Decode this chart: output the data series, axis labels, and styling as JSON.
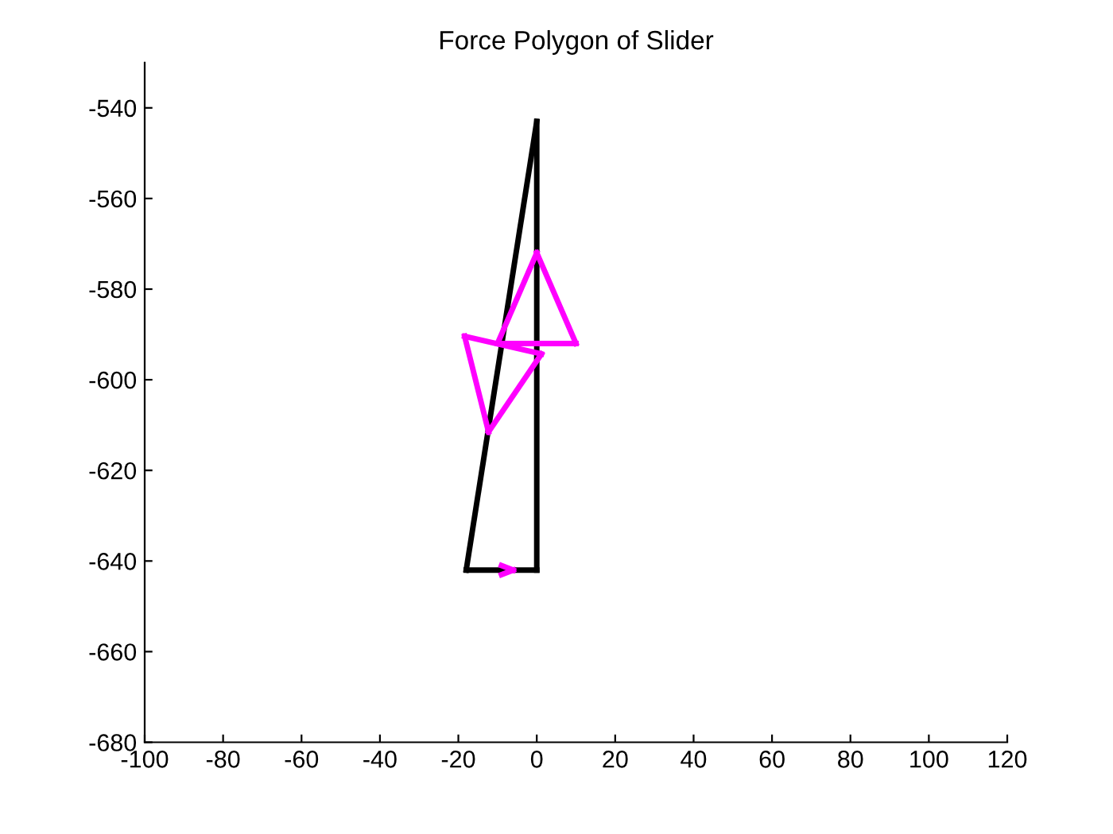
{
  "chart_data": {
    "type": "line",
    "title": "Force Polygon of Slider",
    "series": [
      {
        "color": "#000000",
        "x": [
          0,
          0
        ],
        "values": [
          -543,
          -642
        ]
      },
      {
        "color": "#000000",
        "x": [
          -18,
          0
        ],
        "values": [
          -642,
          -642
        ]
      },
      {
        "color": "#000000",
        "x": [
          -18,
          0
        ],
        "values": [
          -642,
          -543
        ]
      },
      {
        "color": "#ff00ff",
        "x": [
          0,
          10
        ],
        "values": [
          -572,
          -592
        ]
      },
      {
        "color": "#ff00ff",
        "x": [
          -10,
          10
        ],
        "values": [
          -592,
          -592
        ]
      },
      {
        "color": "#ff00ff",
        "x": [
          -10,
          0
        ],
        "values": [
          -592,
          -572
        ]
      },
      {
        "color": "#ff00ff",
        "x": [
          -18.4,
          -12.3
        ],
        "values": [
          -590.4,
          -611.5
        ]
      },
      {
        "color": "#ff00ff",
        "x": [
          -12.3,
          1.2
        ],
        "values": [
          -611.5,
          -594.3
        ]
      },
      {
        "color": "#ff00ff",
        "x": [
          -18.4,
          1.2
        ],
        "values": [
          -590.4,
          -594.3
        ]
      },
      {
        "color": "#ff00ff",
        "x": [
          -9,
          -6
        ],
        "values": [
          -641,
          -642
        ]
      },
      {
        "color": "#ff00ff",
        "x": [
          -9,
          -6
        ],
        "values": [
          -643,
          -642
        ]
      }
    ],
    "xlim": [
      -100,
      120
    ],
    "xticks": [
      -100,
      -80,
      -60,
      -40,
      -20,
      0,
      20,
      40,
      60,
      80,
      100,
      120
    ],
    "ylim": [
      -680,
      -530
    ],
    "yticks": [
      -680,
      -660,
      -640,
      -620,
      -600,
      -580,
      -560,
      -540
    ],
    "grid": false,
    "legend": false,
    "marker": "none",
    "line_style": "solid"
  }
}
